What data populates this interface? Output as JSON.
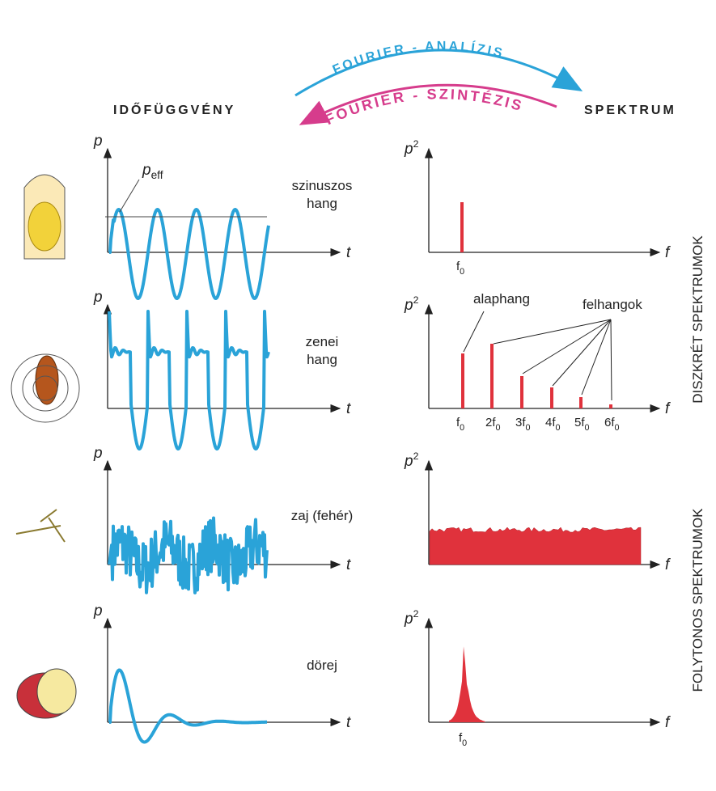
{
  "header": {
    "analysis": "FOURIER - ANALÍZIS",
    "synthesis": "FOURIER - SZINTÉZIS",
    "time_domain": "IDŐFÜGGVÉNY",
    "spectrum": "SPEKTRUM"
  },
  "side_labels": {
    "discrete": "DISZKRÉT SPEKTRUMOK",
    "continuous": "FOLYTONOS SPEKTRUMOK"
  },
  "rows": [
    {
      "label": [
        "szinuszos",
        "hang"
      ],
      "time_y": "p",
      "time_x": "t",
      "spec_y": {
        "base": "p",
        "sup": "2"
      },
      "spec_x": "f",
      "annotation": {
        "base": "p",
        "sub": "eff"
      },
      "freq_labels": [
        {
          "base": "f",
          "sub": "0"
        }
      ]
    },
    {
      "label": [
        "zenei",
        "hang"
      ],
      "time_y": "p",
      "time_x": "t",
      "spec_y": {
        "base": "p",
        "sup": "2"
      },
      "spec_x": "f",
      "fundamental": "alaphang",
      "overtones": "felhangok",
      "freq_labels": [
        {
          "base": "f",
          "sub": "0"
        },
        {
          "base": "2f",
          "sub": "0"
        },
        {
          "base": "3f",
          "sub": "0"
        },
        {
          "base": "4f",
          "sub": "0"
        },
        {
          "base": "5f",
          "sub": "0"
        },
        {
          "base": "6f",
          "sub": "0"
        }
      ]
    },
    {
      "label": [
        "zaj (fehér)"
      ],
      "time_y": "p",
      "time_x": "t",
      "spec_y": {
        "base": "p",
        "sup": "2"
      },
      "spec_x": "f"
    },
    {
      "label": [
        "dörej"
      ],
      "time_y": "p",
      "time_x": "t",
      "spec_y": {
        "base": "p",
        "sup": "2"
      },
      "spec_x": "f",
      "freq_labels": [
        {
          "base": "f",
          "sub": "0"
        }
      ]
    }
  ]
}
